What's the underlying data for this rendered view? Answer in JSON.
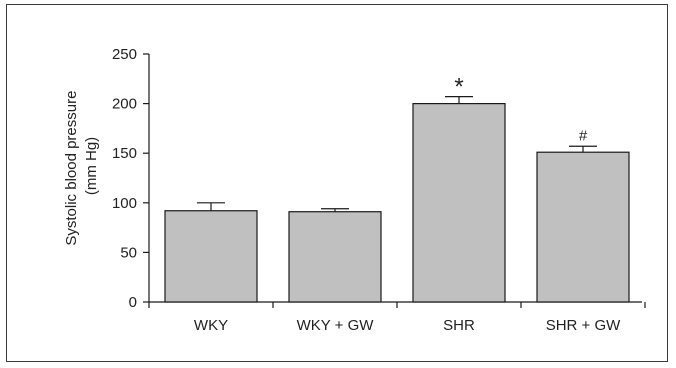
{
  "chart_data": {
    "type": "bar",
    "categories": [
      "WKY",
      "WKY + GW",
      "SHR",
      "SHR + GW"
    ],
    "values": [
      92,
      91,
      200,
      151
    ],
    "errors": [
      8,
      3,
      7,
      6
    ],
    "annotations": [
      "",
      "",
      "*",
      "#"
    ],
    "ylabel_line1": "Systolic blood pressure",
    "ylabel_line2": "(mm Hg)",
    "ylim": [
      0,
      250
    ],
    "yticks": [
      0,
      50,
      100,
      150,
      200,
      250
    ],
    "grid": false,
    "colors": {
      "bar_fill": "#c0c0c0",
      "bar_stroke": "#1a1a1a",
      "axis": "#1a1a1a"
    }
  }
}
